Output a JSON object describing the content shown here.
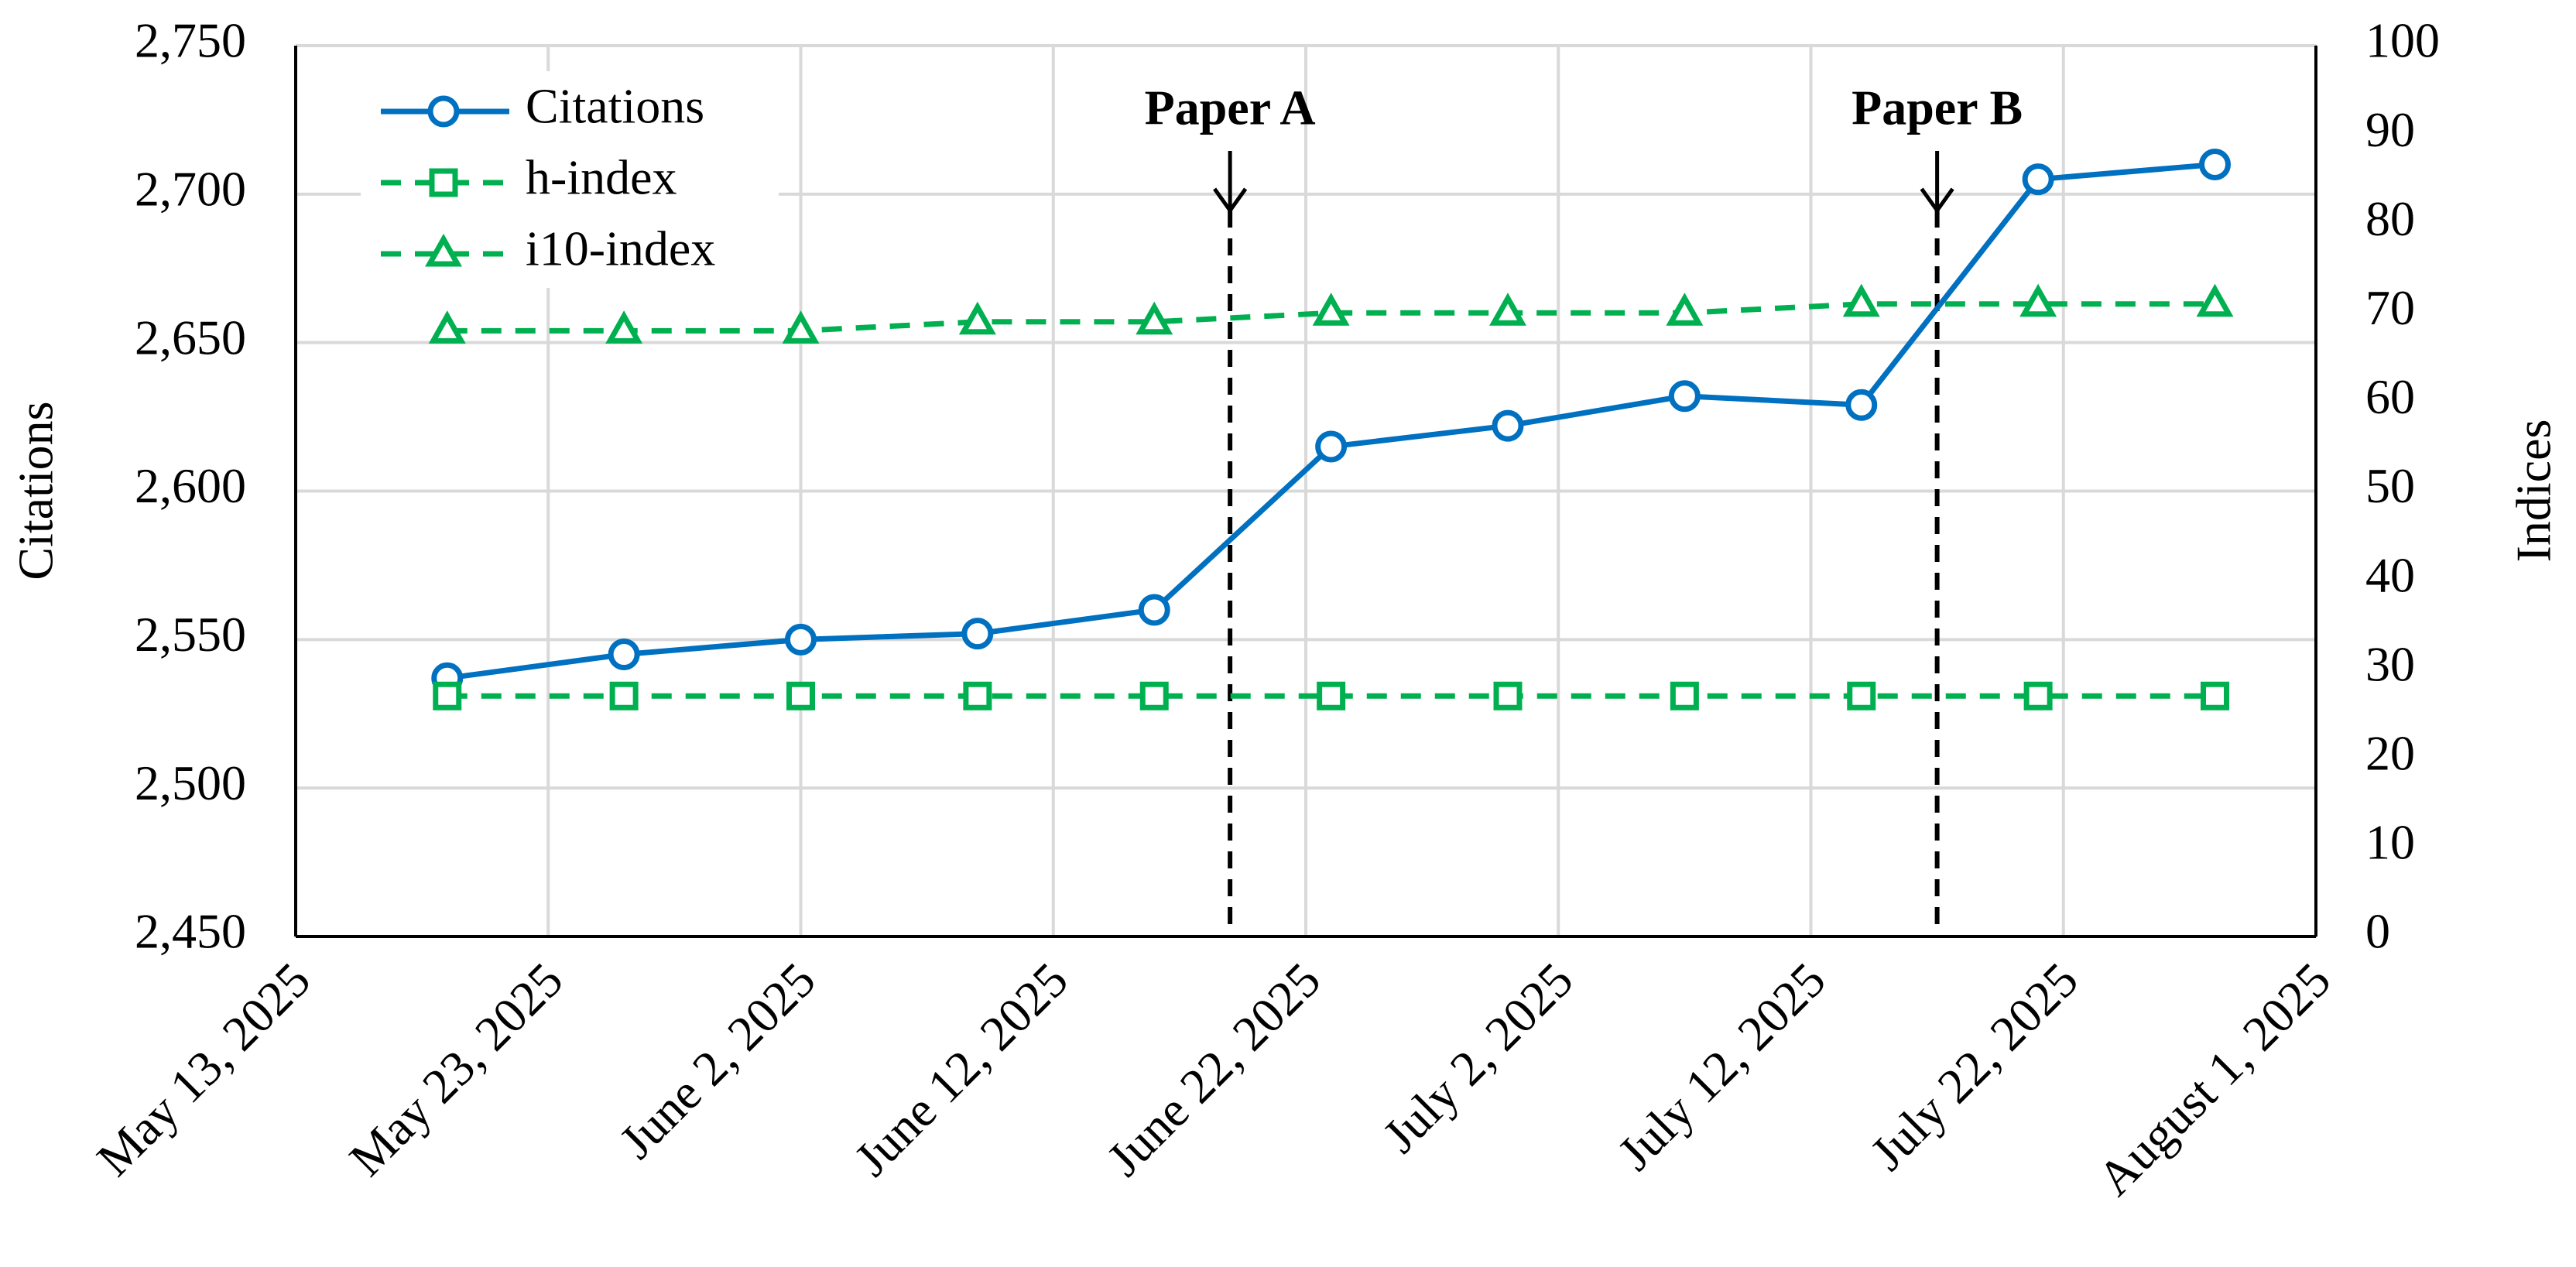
{
  "chart_data": {
    "type": "line",
    "x": [
      "2025-05-19",
      "2025-05-26",
      "2025-06-02",
      "2025-06-09",
      "2025-06-16",
      "2025-06-23",
      "2025-06-30",
      "2025-07-07",
      "2025-07-14",
      "2025-07-21",
      "2025-07-28"
    ],
    "series": [
      {
        "name": "Citations",
        "color": "#0070c0",
        "marker": "circle",
        "line_style": "solid",
        "axis": "y",
        "values": [
          2537,
          2545,
          2550,
          2552,
          2560,
          2615,
          2622,
          2632,
          2629,
          2705,
          2710
        ]
      },
      {
        "name": "h-index",
        "color": "#00b050",
        "marker": "square",
        "line_style": "dashed",
        "axis": "y2",
        "values": [
          27,
          27,
          27,
          27,
          27,
          27,
          27,
          27,
          27,
          27,
          27
        ]
      },
      {
        "name": "i10-index",
        "color": "#00b050",
        "marker": "triangle",
        "line_style": "dashed",
        "axis": "y2",
        "values": [
          68,
          68,
          68,
          69,
          69,
          70,
          70,
          70,
          71,
          71,
          71
        ]
      }
    ],
    "xlim": [
      "2025-05-13",
      "2025-08-01"
    ],
    "xticks": [
      {
        "value": "2025-05-13",
        "label": "May 13, 2025"
      },
      {
        "value": "2025-05-23",
        "label": "May 23, 2025"
      },
      {
        "value": "2025-06-02",
        "label": "June 2, 2025"
      },
      {
        "value": "2025-06-12",
        "label": "June 12, 2025"
      },
      {
        "value": "2025-06-22",
        "label": "June 22, 2025"
      },
      {
        "value": "2025-07-02",
        "label": "July 2, 2025"
      },
      {
        "value": "2025-07-12",
        "label": "July 12, 2025"
      },
      {
        "value": "2025-07-22",
        "label": "July 22, 2025"
      },
      {
        "value": "2025-08-01",
        "label": "August 1, 2025"
      }
    ],
    "ylim": [
      2450,
      2750
    ],
    "yticks": [
      {
        "value": 2450,
        "label": "2,450"
      },
      {
        "value": 2500,
        "label": "2,500"
      },
      {
        "value": 2550,
        "label": "2,550"
      },
      {
        "value": 2600,
        "label": "2,600"
      },
      {
        "value": 2650,
        "label": "2,650"
      },
      {
        "value": 2700,
        "label": "2,700"
      },
      {
        "value": 2750,
        "label": "2,750"
      }
    ],
    "y2lim": [
      0,
      100
    ],
    "y2ticks": [
      0,
      10,
      20,
      30,
      40,
      50,
      60,
      70,
      80,
      90,
      100
    ],
    "ylabel": "Citations",
    "y2label": "Indices",
    "grid": true,
    "legend": "upper left",
    "annotations": [
      {
        "text": "Paper A",
        "x": "2025-06-19"
      },
      {
        "text": "Paper B",
        "x": "2025-07-17"
      }
    ]
  }
}
